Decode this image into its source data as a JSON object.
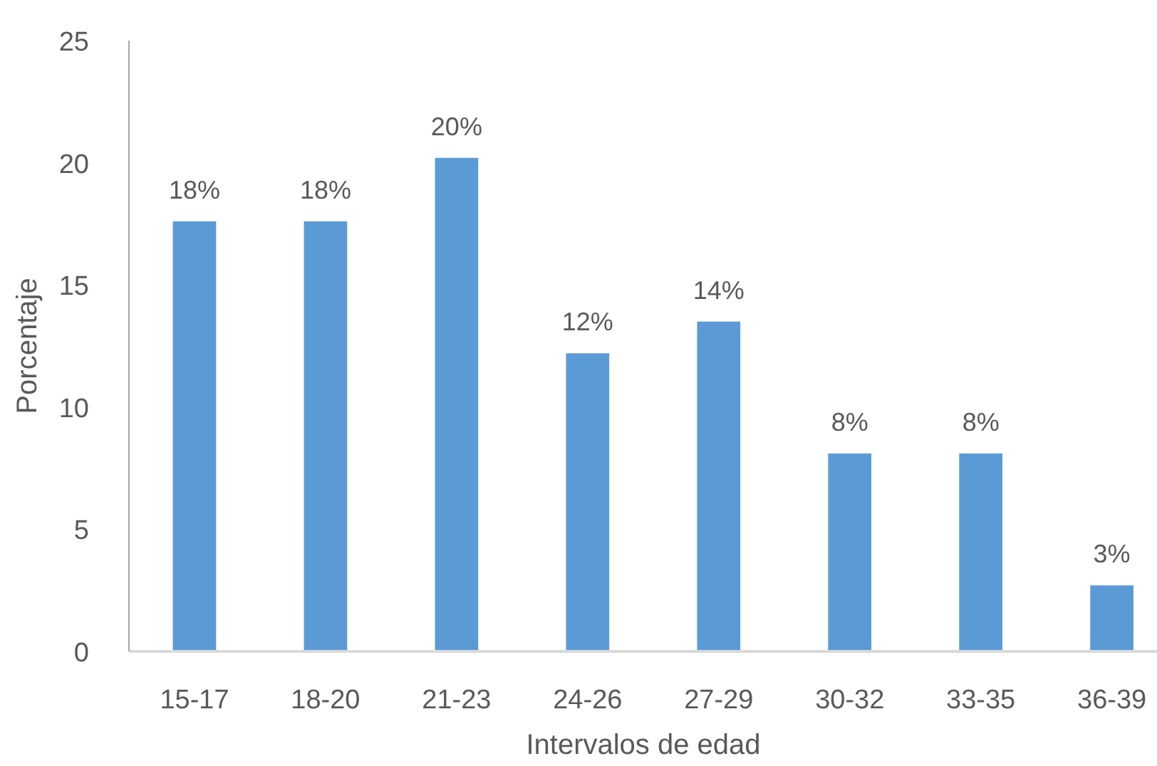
{
  "chart_data": {
    "type": "bar",
    "xlabel": "Intervalos de edad",
    "ylabel": "Porcentaje",
    "categories": [
      "15-17",
      "18-20",
      "21-23",
      "24-26",
      "27-29",
      "30-32",
      "33-35",
      "36-39"
    ],
    "values": [
      17.6,
      17.6,
      20.2,
      12.2,
      13.5,
      8.1,
      8.1,
      2.7
    ],
    "value_labels": [
      "18%",
      "18%",
      "20%",
      "12%",
      "14%",
      "8%",
      "8%",
      "3%"
    ],
    "color": "#5b9bd5",
    "ylim": [
      0,
      25
    ],
    "yticks": [
      0,
      5,
      10,
      15,
      20,
      25
    ],
    "grid": false
  }
}
